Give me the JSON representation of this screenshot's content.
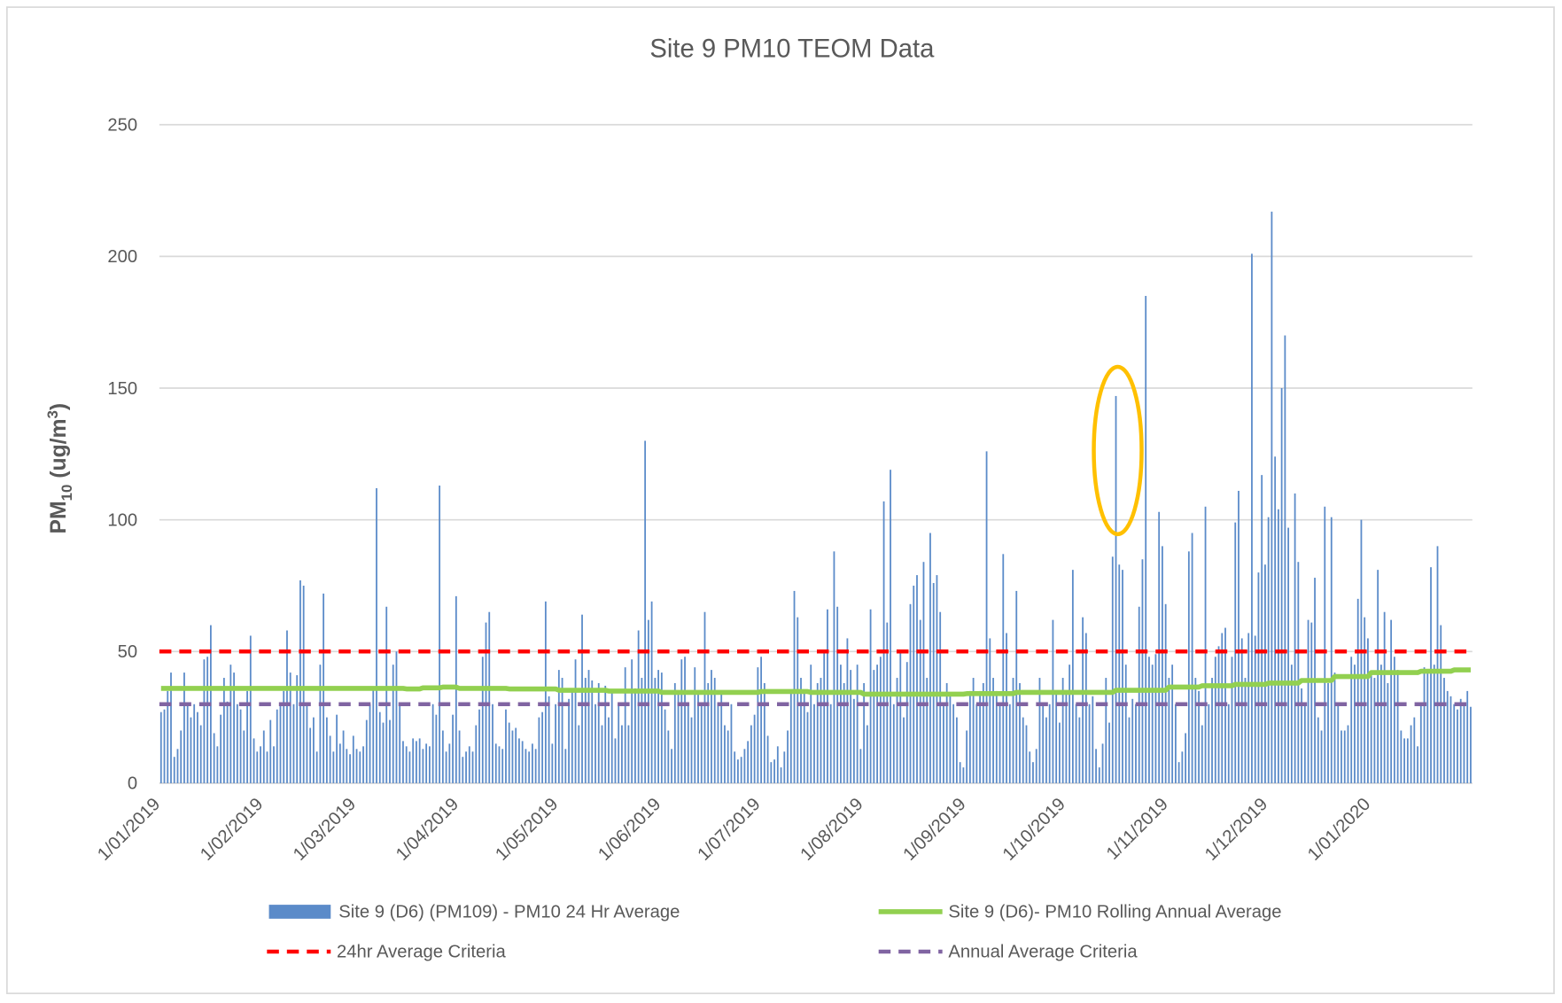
{
  "chart_data": {
    "type": "bar",
    "title": "Site 9 PM10 TEOM Data",
    "y_label": [
      "PM",
      "10",
      " (ug/m",
      "3",
      ")"
    ],
    "ylim": [
      0,
      250
    ],
    "yticks": [
      0,
      50,
      100,
      150,
      200,
      250
    ],
    "grid": true,
    "legend": "bottom",
    "categories": [
      "1/01/2019",
      null,
      null,
      null,
      null,
      null,
      null,
      null,
      null,
      null,
      null,
      null,
      null,
      null,
      null,
      null,
      null,
      null,
      null,
      null,
      null,
      null,
      null,
      null,
      null,
      null,
      null,
      null,
      null,
      null,
      null,
      "1/02/2019",
      null,
      null,
      null,
      null,
      null,
      null,
      null,
      null,
      null,
      null,
      null,
      null,
      null,
      null,
      null,
      null,
      null,
      null,
      null,
      null,
      null,
      null,
      null,
      null,
      null,
      null,
      null,
      "1/03/2019",
      null,
      null,
      null,
      null,
      null,
      null,
      null,
      null,
      null,
      null,
      null,
      null,
      null,
      null,
      null,
      null,
      null,
      null,
      null,
      null,
      null,
      null,
      null,
      null,
      null,
      null,
      null,
      null,
      null,
      null,
      "1/04/2019",
      null,
      null,
      null,
      null,
      null,
      null,
      null,
      null,
      null,
      null,
      null,
      null,
      null,
      null,
      null,
      null,
      null,
      null,
      null,
      null,
      null,
      null,
      null,
      null,
      null,
      null,
      null,
      null,
      null,
      "1/05/2019",
      null,
      null,
      null,
      null,
      null,
      null,
      null,
      null,
      null,
      null,
      null,
      null,
      null,
      null,
      null,
      null,
      null,
      null,
      null,
      null,
      null,
      null,
      null,
      null,
      null,
      null,
      null,
      null,
      null,
      null,
      "1/06/2019",
      null,
      null,
      null,
      null,
      null,
      null,
      null,
      null,
      null,
      null,
      null,
      null,
      null,
      null,
      null,
      null,
      null,
      null,
      null,
      null,
      null,
      null,
      null,
      null,
      null,
      null,
      null,
      null,
      null,
      "1/07/2019",
      null,
      null,
      null,
      null,
      null,
      null,
      null,
      null,
      null,
      null,
      null,
      null,
      null,
      null,
      null,
      null,
      null,
      null,
      null,
      null,
      null,
      null,
      null,
      null,
      null,
      null,
      null,
      null,
      null,
      null,
      "1/08/2019",
      null,
      null,
      null,
      null,
      null,
      null,
      null,
      null,
      null,
      null,
      null,
      null,
      null,
      null,
      null,
      null,
      null,
      null,
      null,
      null,
      null,
      null,
      null,
      null,
      null,
      null,
      null,
      null,
      null,
      null,
      "1/09/2019",
      null,
      null,
      null,
      null,
      null,
      null,
      null,
      null,
      null,
      null,
      null,
      null,
      null,
      null,
      null,
      null,
      null,
      null,
      null,
      null,
      null,
      null,
      null,
      null,
      null,
      null,
      null,
      null,
      null,
      "1/10/2019",
      null,
      null,
      null,
      null,
      null,
      null,
      null,
      null,
      null,
      null,
      null,
      null,
      null,
      null,
      null,
      null,
      null,
      null,
      null,
      null,
      null,
      null,
      null,
      null,
      null,
      null,
      null,
      null,
      null,
      null,
      "1/11/2019",
      null,
      null,
      null,
      null,
      null,
      null,
      null,
      null,
      null,
      null,
      null,
      null,
      null,
      null,
      null,
      null,
      null,
      null,
      null,
      null,
      null,
      null,
      null,
      null,
      null,
      null,
      null,
      null,
      null,
      "1/12/2019",
      null,
      null,
      null,
      null,
      null,
      null,
      null,
      null,
      null,
      null,
      null,
      null,
      null,
      null,
      null,
      null,
      null,
      null,
      null,
      null,
      null,
      null,
      null,
      null,
      null,
      null,
      null,
      null,
      null,
      null,
      "1/01/2020",
      null,
      null,
      null,
      null,
      null,
      null,
      null,
      null,
      null,
      null,
      null,
      null,
      null,
      null,
      null,
      null,
      null,
      null,
      null,
      null,
      null,
      null,
      null,
      null,
      null,
      null,
      null,
      null,
      null,
      null
    ],
    "series": [
      {
        "name": "Site 9 (D6) (PM109) - PM10 24 Hr Average",
        "type": "bar",
        "color": "#5b8bc9",
        "values": [
          27,
          28,
          35,
          42,
          10,
          13,
          20,
          42,
          30,
          25,
          30,
          27,
          22,
          47,
          48,
          60,
          19,
          14,
          26,
          40,
          31,
          45,
          42,
          30,
          28,
          20,
          35,
          56,
          17,
          12,
          14,
          20,
          12,
          24,
          14,
          28,
          30,
          35,
          58,
          42,
          30,
          41,
          77,
          75,
          30,
          21,
          25,
          12,
          45,
          72,
          25,
          18,
          12,
          26,
          15,
          20,
          13,
          11,
          18,
          13,
          12,
          14,
          24,
          30,
          36,
          112,
          27,
          23,
          67,
          24,
          45,
          50,
          30,
          16,
          14,
          12,
          17,
          16,
          17,
          13,
          15,
          14,
          30,
          26,
          113,
          20,
          12,
          15,
          26,
          71,
          20,
          10,
          12,
          14,
          12,
          22,
          28,
          48,
          61,
          65,
          30,
          15,
          14,
          13,
          28,
          23,
          20,
          21,
          17,
          16,
          13,
          12,
          15,
          13,
          25,
          27,
          69,
          33,
          15,
          30,
          43,
          40,
          13,
          32,
          36,
          47,
          22,
          64,
          40,
          43,
          39,
          30,
          38,
          22,
          37,
          25,
          35,
          17,
          30,
          22,
          44,
          22,
          47,
          36,
          58,
          40,
          130,
          62,
          69,
          40,
          43,
          42,
          28,
          20,
          13,
          38,
          35,
          47,
          48,
          30,
          25,
          44,
          35,
          30,
          65,
          38,
          43,
          40,
          30,
          35,
          22,
          20,
          30,
          12,
          9,
          10,
          13,
          16,
          22,
          26,
          44,
          48,
          38,
          18,
          8,
          9,
          14,
          6,
          12,
          20,
          35,
          73,
          63,
          40,
          35,
          27,
          45,
          30,
          38,
          40,
          50,
          66,
          30,
          88,
          67,
          45,
          38,
          55,
          43,
          32,
          45,
          13,
          38,
          22,
          66,
          43,
          45,
          48,
          107,
          61,
          119,
          30,
          40,
          50,
          25,
          46,
          68,
          75,
          79,
          62,
          84,
          40,
          95,
          76,
          79,
          65,
          30,
          38,
          33,
          30,
          25,
          8,
          6,
          20,
          35,
          40,
          30,
          35,
          38,
          126,
          55,
          40,
          35,
          30,
          87,
          57,
          30,
          40,
          73,
          38,
          25,
          22,
          12,
          8,
          13,
          40,
          30,
          25,
          30,
          62,
          35,
          23,
          40,
          34,
          45,
          81,
          30,
          25,
          63,
          57,
          30,
          33,
          13,
          6,
          15,
          40,
          23,
          86,
          147,
          83,
          81,
          45,
          25,
          32,
          30,
          67,
          85,
          185,
          48,
          45,
          49,
          103,
          90,
          68,
          40,
          45,
          30,
          8,
          12,
          19,
          88,
          95,
          40,
          35,
          22,
          105,
          30,
          40,
          48,
          52,
          57,
          59,
          30,
          48,
          99,
          111,
          55,
          40,
          57,
          201,
          56,
          80,
          117,
          83,
          101,
          217,
          124,
          104,
          150,
          170,
          97,
          45,
          110,
          84,
          36,
          30,
          62,
          61,
          78,
          25,
          20,
          105,
          38,
          101,
          42,
          30,
          20,
          20,
          22,
          48,
          45,
          70,
          100,
          63,
          55,
          42,
          40,
          81,
          45,
          65,
          38,
          62,
          48,
          43,
          20,
          17,
          17,
          22,
          25,
          14,
          30,
          44,
          42,
          82,
          45,
          90,
          60,
          40,
          35,
          33,
          30,
          28,
          32,
          30,
          35,
          29
        ]
      },
      {
        "name": "Site 9 (D6)- PM10 Rolling Annual Average",
        "type": "line",
        "color": "#92d050",
        "values": [
          36,
          36,
          36,
          36,
          36,
          36,
          36,
          36,
          36,
          36,
          36,
          36,
          36,
          36,
          36,
          36,
          36,
          36,
          36,
          36,
          36,
          36,
          36,
          36,
          36,
          36,
          36,
          36,
          36,
          36,
          36,
          36,
          36,
          36,
          36,
          36,
          36,
          36,
          36,
          36,
          36,
          36,
          36,
          36,
          36,
          36,
          36,
          36,
          36,
          36,
          36,
          36,
          36,
          36,
          36,
          36,
          36,
          36,
          36,
          36,
          36,
          36,
          36,
          36,
          36,
          36,
          36,
          36,
          36,
          36,
          36,
          36,
          36,
          36,
          35.8,
          35.8,
          35.8,
          35.8,
          35.8,
          36.2,
          36.2,
          36.2,
          36.2,
          36.2,
          36.2,
          36.5,
          36.5,
          36.5,
          36.5,
          36.5,
          36,
          36,
          36,
          36,
          36,
          36,
          36,
          36,
          36,
          36,
          36,
          36,
          36,
          36,
          36,
          35.8,
          35.8,
          35.8,
          35.8,
          35.8,
          35.8,
          35.8,
          35.8,
          35.8,
          35.8,
          35.8,
          35.8,
          35.8,
          35.8,
          35.8,
          35.3,
          35.3,
          35.3,
          35.3,
          35.3,
          35.3,
          35.3,
          35.3,
          35.3,
          35.3,
          35.3,
          35.3,
          35.3,
          35.3,
          35.3,
          35,
          35,
          35,
          35,
          35,
          35,
          35,
          35,
          35,
          35,
          35,
          35,
          35,
          35,
          35,
          35,
          34.5,
          34.5,
          34.5,
          34.5,
          34.5,
          34.5,
          34.5,
          34.5,
          34.5,
          34.5,
          34.5,
          34.5,
          34.5,
          34.5,
          34.5,
          34.5,
          34.5,
          34.5,
          34.5,
          34.5,
          34.5,
          34.5,
          34.5,
          34.5,
          34.5,
          34.5,
          34.5,
          34.5,
          34.5,
          34.5,
          34.8,
          34.8,
          34.8,
          34.8,
          34.8,
          34.8,
          34.8,
          34.8,
          34.8,
          34.8,
          34.8,
          34.8,
          34.8,
          34.8,
          34.8,
          34.5,
          34.5,
          34.5,
          34.5,
          34.5,
          34.5,
          34.5,
          34.5,
          34.5,
          34.5,
          34.5,
          34.5,
          34.5,
          34.5,
          34.5,
          34.5,
          33.8,
          33.8,
          33.8,
          33.8,
          33.8,
          33.8,
          33.8,
          33.8,
          33.8,
          33.8,
          33.8,
          33.8,
          33.8,
          33.8,
          33.8,
          33.8,
          33.8,
          33.8,
          33.8,
          33.8,
          33.8,
          33.8,
          33.8,
          33.8,
          33.8,
          33.8,
          33.8,
          33.8,
          33.8,
          33.8,
          33.8,
          34,
          34,
          34,
          34,
          34,
          34,
          34,
          34,
          34,
          34,
          34,
          34,
          34,
          34,
          34,
          34.5,
          34.5,
          34.5,
          34.5,
          34.5,
          34.5,
          34.5,
          34.5,
          34.5,
          34.5,
          34.5,
          34.5,
          34.5,
          34.5,
          34.5,
          34.5,
          34.5,
          34.5,
          34.5,
          34.5,
          34.5,
          34.5,
          34.5,
          34.5,
          34.5,
          34.5,
          34.5,
          34.5,
          34.5,
          34.5,
          35.3,
          35.3,
          35.3,
          35.3,
          35.3,
          35.3,
          35.3,
          35.3,
          35.3,
          35.3,
          35.3,
          35.3,
          35.3,
          35.3,
          35.3,
          35.3,
          36.5,
          36.5,
          36.5,
          36.5,
          36.5,
          36.5,
          36.5,
          36.5,
          36.5,
          36.5,
          37,
          37,
          37,
          37,
          37,
          37,
          37,
          37,
          37,
          37,
          37.5,
          37.5,
          37.5,
          37.5,
          37.5,
          37.5,
          37.5,
          37.5,
          37.5,
          37.5,
          38,
          38,
          38,
          38,
          38,
          38,
          38,
          38,
          38,
          38,
          39,
          39,
          39,
          39,
          39,
          39,
          39,
          39,
          39,
          39,
          40.5,
          40.5,
          40.5,
          40.5,
          40.5,
          40.5,
          40.5,
          40.5,
          40.5,
          40.5,
          40.5,
          42,
          42,
          42,
          42,
          42,
          42,
          42,
          42,
          42,
          42,
          42,
          42,
          42,
          42,
          42,
          42.5,
          42.5,
          42.5,
          42.5,
          42.5,
          42.5,
          42.5,
          42.5,
          42.5,
          42.5,
          43,
          43,
          43,
          43,
          43,
          43
        ]
      }
    ],
    "reference_lines": [
      {
        "name": "24hr Average Criteria",
        "color": "#ff0000",
        "value": 50,
        "dashed": true
      },
      {
        "name": "Annual Average Criteria",
        "color": "#8064a2",
        "value": 30,
        "dashed": true
      }
    ]
  }
}
